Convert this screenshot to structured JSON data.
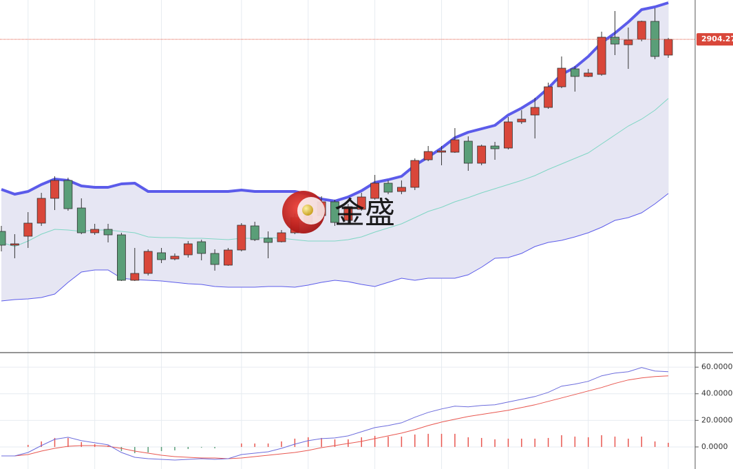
{
  "chart_data": [
    {
      "type": "candlestick",
      "watermark": "金盛",
      "last_price": 2904.27,
      "ylim": [
        2542,
        2950
      ],
      "grid": true,
      "up_color": "#d9473a",
      "down_color": "#5a9e78",
      "band_fill": "#e6e6f3",
      "open": [
        2681.2,
        2665.2,
        2675.6,
        2690.8,
        2719.6,
        2740.4,
        2708.4,
        2679.6,
        2683.6,
        2677.2,
        2624.4,
        2632.4,
        2656.4,
        2649.2,
        2654.0,
        2669.2,
        2655.6,
        2642.0,
        2659.6,
        2687.6,
        2673.2,
        2669.2,
        2679.6,
        2691.6,
        2699.6,
        2715.6,
        2694.0,
        2706.8,
        2719.6,
        2737.2,
        2727.6,
        2732.4,
        2764.4,
        2773.2,
        2773.2,
        2786.0,
        2760.4,
        2780.4,
        2778.0,
        2808.4,
        2816.4,
        2825.2,
        2849.2,
        2870.0,
        2861.2,
        2863.6,
        2906.8,
        2898.0,
        2904.4,
        2925.2,
        2886.0
      ],
      "high": [
        2687.6,
        2678.0,
        2703.6,
        2726.0,
        2745.2,
        2743.6,
        2719.6,
        2690.0,
        2690.0,
        2679.6,
        2662.0,
        2660.4,
        2662.0,
        2655.6,
        2670.0,
        2671.6,
        2660.4,
        2662.0,
        2690.8,
        2692.4,
        2681.2,
        2682.8,
        2702.0,
        2706.0,
        2722.0,
        2718.0,
        2713.2,
        2726.0,
        2746.8,
        2740.4,
        2740.4,
        2766.0,
        2780.4,
        2780.4,
        2801.2,
        2791.6,
        2782.0,
        2785.2,
        2814.0,
        2822.0,
        2836.4,
        2854.0,
        2884.4,
        2873.2,
        2870.0,
        2913.2,
        2937.2,
        2918.0,
        2926.0,
        2940.4,
        2906.0
      ],
      "low": [
        2658.0,
        2650.0,
        2662.0,
        2687.6,
        2706.0,
        2705.2,
        2678.0,
        2677.2,
        2668.4,
        2623.6,
        2623.6,
        2630.0,
        2644.4,
        2647.6,
        2650.8,
        2647.6,
        2635.6,
        2641.2,
        2658.0,
        2670.0,
        2650.0,
        2668.4,
        2678.0,
        2689.2,
        2695.6,
        2687.6,
        2690.8,
        2705.2,
        2718.0,
        2724.4,
        2724.4,
        2729.2,
        2762.8,
        2758.0,
        2772.4,
        2751.6,
        2758.0,
        2764.4,
        2776.4,
        2806.0,
        2789.2,
        2823.6,
        2847.6,
        2843.6,
        2860.4,
        2862.0,
        2886.0,
        2870.0,
        2902.0,
        2881.2,
        2882.8
      ],
      "close": [
        2665.2,
        2666.8,
        2690.8,
        2719.6,
        2740.4,
        2707.6,
        2679.6,
        2683.6,
        2677.2,
        2624.4,
        2632.4,
        2658.0,
        2648.4,
        2652.4,
        2666.8,
        2655.6,
        2642.8,
        2659.6,
        2688.4,
        2671.6,
        2668.4,
        2679.6,
        2697.2,
        2699.6,
        2715.6,
        2691.6,
        2710.0,
        2721.2,
        2737.2,
        2726.8,
        2732.4,
        2763.6,
        2774.0,
        2774.8,
        2787.6,
        2760.4,
        2780.4,
        2777.2,
        2808.4,
        2811.6,
        2825.2,
        2849.2,
        2870.8,
        2861.2,
        2865.2,
        2906.8,
        2898.8,
        2903.6,
        2925.2,
        2884.4,
        2904.27
      ],
      "upper_band": {
        "color": "#5b5bea",
        "values": [
          2730.0,
          2724.4,
          2727.6,
          2735.6,
          2742.0,
          2740.4,
          2734.0,
          2732.4,
          2732.4,
          2736.4,
          2737.2,
          2727.6,
          2727.6,
          2727.6,
          2727.6,
          2727.6,
          2727.6,
          2727.6,
          2729.2,
          2727.6,
          2727.6,
          2727.6,
          2727.6,
          2724.4,
          2718.8,
          2716.4,
          2721.2,
          2728.4,
          2738.0,
          2741.2,
          2745.2,
          2758.0,
          2767.6,
          2778.0,
          2790.0,
          2796.4,
          2800.4,
          2804.4,
          2816.4,
          2824.4,
          2834.0,
          2847.6,
          2863.6,
          2871.6,
          2884.4,
          2900.4,
          2911.6,
          2924.4,
          2938.8,
          2942.0,
          2946.8
        ]
      },
      "middle_band": {
        "color": "#7fd6c4",
        "values": [
          2668.4,
          2663.6,
          2670.0,
          2678.0,
          2683.6,
          2682.8,
          2681.2,
          2682.8,
          2682.8,
          2681.2,
          2679.6,
          2674.8,
          2674.0,
          2674.0,
          2673.2,
          2673.2,
          2672.4,
          2671.6,
          2673.2,
          2673.2,
          2674.0,
          2673.2,
          2671.6,
          2670.0,
          2670.0,
          2670.0,
          2671.6,
          2674.8,
          2680.4,
          2685.2,
          2690.0,
          2697.2,
          2704.4,
          2709.2,
          2715.6,
          2720.4,
          2726.0,
          2730.8,
          2735.6,
          2740.4,
          2746.0,
          2753.2,
          2759.6,
          2766.0,
          2772.4,
          2782.8,
          2793.2,
          2803.6,
          2811.6,
          2822.0,
          2835.6
        ]
      },
      "lower_band": {
        "color": "#5b5bea",
        "values": [
          2600.4,
          2602.0,
          2602.8,
          2604.4,
          2608.4,
          2622.0,
          2634.0,
          2636.4,
          2636.4,
          2626.8,
          2625.2,
          2624.4,
          2623.6,
          2622.0,
          2620.4,
          2619.6,
          2617.2,
          2616.4,
          2616.4,
          2616.4,
          2617.2,
          2617.2,
          2616.4,
          2618.8,
          2622.0,
          2624.4,
          2622.8,
          2619.6,
          2617.2,
          2622.0,
          2626.8,
          2624.4,
          2626.8,
          2626.8,
          2626.8,
          2630.8,
          2639.6,
          2650.0,
          2650.8,
          2655.6,
          2663.6,
          2668.4,
          2670.8,
          2674.8,
          2679.6,
          2686.0,
          2694.0,
          2697.2,
          2702.8,
          2713.2,
          2725.2
        ]
      }
    },
    {
      "type": "macd",
      "ylim": [
        -16.6,
        69.4
      ],
      "grid": true,
      "yticks": [
        {
          "value": 60,
          "label": "60.0000"
        },
        {
          "value": 40,
          "label": "40.0000"
        },
        {
          "value": 20,
          "label": "20.0000"
        },
        {
          "value": 0,
          "label": "0.0000"
        }
      ],
      "dif": {
        "color": "#6b6bdc",
        "values": [
          -6.75,
          -6.75,
          -4.16,
          1.04,
          5.71,
          7.27,
          4.68,
          3.12,
          1.56,
          -4.16,
          -7.79,
          -8.83,
          -9.35,
          -9.87,
          -9.35,
          -8.83,
          -9.35,
          -8.83,
          -5.71,
          -4.68,
          -3.64,
          -1.04,
          2.08,
          4.68,
          6.23,
          6.75,
          8.31,
          11.43,
          14.55,
          16.1,
          18.18,
          22.34,
          25.97,
          28.57,
          30.65,
          30.13,
          31.17,
          31.69,
          33.77,
          35.84,
          37.92,
          41.04,
          45.71,
          47.27,
          49.35,
          53.51,
          55.58,
          56.62,
          59.74,
          57.14,
          56.62
        ]
      },
      "dea": {
        "color": "#e8564f",
        "values": [
          -6.75,
          -6.75,
          -5.71,
          -3.12,
          -1.04,
          0.52,
          1.04,
          1.04,
          0.52,
          -1.04,
          -3.12,
          -4.68,
          -6.23,
          -7.27,
          -7.79,
          -8.31,
          -8.31,
          -8.83,
          -8.31,
          -7.27,
          -6.23,
          -5.19,
          -4.16,
          -2.6,
          -0.52,
          1.04,
          2.6,
          4.16,
          6.23,
          8.31,
          10.39,
          12.99,
          16.1,
          18.7,
          20.78,
          22.86,
          24.42,
          25.97,
          27.53,
          29.61,
          31.69,
          34.29,
          36.88,
          39.48,
          42.08,
          44.68,
          47.79,
          50.39,
          51.95,
          52.99,
          53.51
        ]
      },
      "histogram": {
        "up_color": "#e8564f",
        "down_color": "#5a9e78",
        "values": [
          0,
          0,
          1.55,
          4.16,
          6.75,
          6.75,
          3.64,
          2.08,
          1.04,
          -3.12,
          -4.67,
          -4.15,
          -3.12,
          -2.6,
          -1.56,
          -0.52,
          -1.04,
          0,
          2.6,
          2.59,
          2.59,
          4.15,
          6.24,
          7.28,
          6.75,
          5.71,
          5.71,
          7.27,
          8.32,
          7.79,
          7.79,
          9.35,
          9.87,
          9.87,
          9.87,
          7.27,
          6.75,
          5.72,
          6.24,
          6.23,
          6.23,
          6.75,
          8.83,
          7.79,
          7.27,
          8.83,
          7.79,
          6.23,
          7.79,
          4.15,
          3.11
        ]
      }
    }
  ]
}
